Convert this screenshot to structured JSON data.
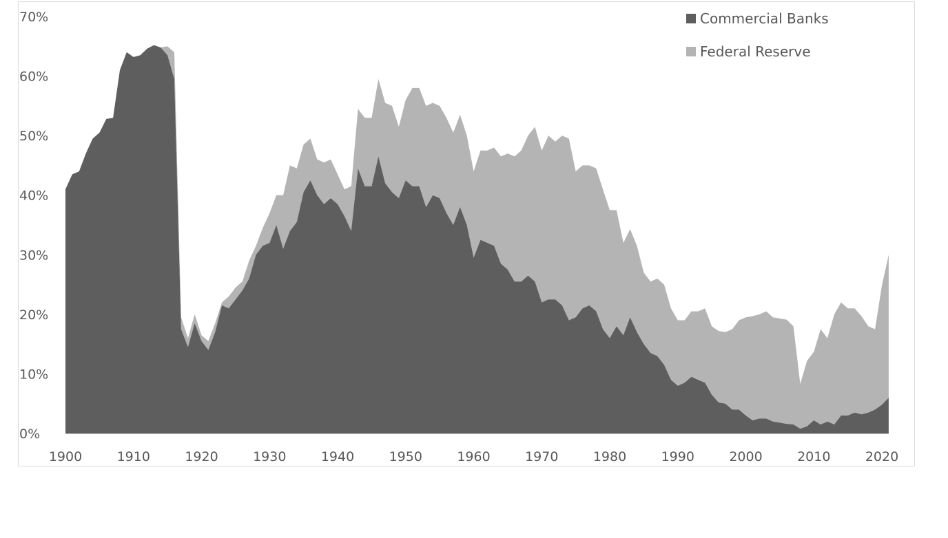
{
  "colors": {
    "commercial_banks": "#5e5e5e",
    "federal_reserve": "#b4b4b4",
    "frame": "#d9d9d9",
    "axis_line": "#bfbfbf",
    "text": "#595959"
  },
  "chart_data": {
    "type": "area",
    "stacked": true,
    "title": "",
    "xlabel": "",
    "ylabel": "",
    "xlim": [
      1900,
      2021
    ],
    "ylim": [
      0,
      70
    ],
    "x_ticks": [
      "1900",
      "1910",
      "1920",
      "1930",
      "1940",
      "1950",
      "1960",
      "1970",
      "1980",
      "1990",
      "2000",
      "2010",
      "2020"
    ],
    "y_ticks": [
      "0%",
      "10%",
      "20%",
      "30%",
      "40%",
      "50%",
      "60%",
      "70%"
    ],
    "grid": false,
    "legend_position": "top-right",
    "legend": [
      "Commercial Banks",
      "Federal Reserve"
    ],
    "x": [
      1900,
      1901,
      1902,
      1903,
      1904,
      1905,
      1906,
      1907,
      1908,
      1909,
      1910,
      1911,
      1912,
      1913,
      1914,
      1915,
      1916,
      1917,
      1918,
      1919,
      1920,
      1921,
      1922,
      1923,
      1924,
      1925,
      1926,
      1927,
      1928,
      1929,
      1930,
      1931,
      1932,
      1933,
      1934,
      1935,
      1936,
      1937,
      1938,
      1939,
      1940,
      1941,
      1942,
      1943,
      1944,
      1945,
      1946,
      1947,
      1948,
      1949,
      1950,
      1951,
      1952,
      1953,
      1954,
      1955,
      1956,
      1957,
      1958,
      1959,
      1960,
      1961,
      1962,
      1963,
      1964,
      1965,
      1966,
      1967,
      1968,
      1969,
      1970,
      1971,
      1972,
      1973,
      1974,
      1975,
      1976,
      1977,
      1978,
      1979,
      1980,
      1981,
      1982,
      1983,
      1984,
      1985,
      1986,
      1987,
      1988,
      1989,
      1990,
      1991,
      1992,
      1993,
      1994,
      1995,
      1996,
      1997,
      1998,
      1999,
      2000,
      2001,
      2002,
      2003,
      2004,
      2005,
      2006,
      2007,
      2008,
      2009,
      2010,
      2011,
      2012,
      2013,
      2014,
      2015,
      2016,
      2017,
      2018,
      2019,
      2020,
      2021
    ],
    "series": [
      {
        "name": "Commercial Banks",
        "values": [
          41,
          43.5,
          44,
          47,
          49.5,
          50.5,
          52.8,
          53,
          61,
          64,
          63.2,
          63.5,
          64.6,
          65.2,
          64.8,
          63.5,
          59.5,
          17.5,
          14.5,
          18.5,
          15.5,
          14,
          17,
          21.5,
          21,
          22.5,
          24,
          26,
          30,
          31.5,
          32,
          35,
          31,
          34,
          35.5,
          40.5,
          42.5,
          40,
          38.5,
          39.5,
          38.5,
          36.5,
          34,
          44.5,
          41.5,
          41.5,
          46.5,
          42,
          40.5,
          39.5,
          42.5,
          41.5,
          41.5,
          38,
          40,
          39.5,
          37,
          35,
          38,
          35,
          29.5,
          32.5,
          32,
          31.5,
          28.5,
          27.5,
          25.5,
          25.5,
          26.5,
          25.5,
          22,
          22.5,
          22.5,
          21.5,
          19,
          19.5,
          21,
          21.5,
          20.5,
          17.5,
          16,
          18,
          16.5,
          19.5,
          17,
          15,
          13.5,
          13,
          11.5,
          9,
          8,
          8.5,
          9.5,
          9,
          8.5,
          6.5,
          5.2,
          5,
          4,
          4,
          3,
          2.2,
          2.5,
          2.5,
          2,
          1.8,
          1.6,
          1.5,
          0.8,
          1.2,
          2.2,
          1.5,
          2,
          1.5,
          3,
          3,
          3.5,
          3.2,
          3.5,
          4,
          4.8,
          6
        ]
      },
      {
        "name": "Federal Reserve",
        "values": [
          0,
          0,
          0,
          0,
          0,
          0,
          0,
          0,
          0,
          0,
          0,
          0,
          0,
          0,
          0,
          1.5,
          4.5,
          2,
          1.5,
          1.5,
          1,
          1.5,
          1.5,
          0.5,
          2,
          2,
          1.5,
          3,
          1.5,
          3,
          5,
          5,
          9,
          11,
          9,
          8,
          7,
          6,
          7,
          6.5,
          5,
          4.5,
          7.5,
          10,
          11.5,
          11.5,
          13,
          13.5,
          14.5,
          12,
          13.5,
          16.5,
          16.5,
          17,
          15.5,
          15.5,
          16,
          15.5,
          15.5,
          15,
          14.5,
          15,
          15.5,
          16.5,
          18,
          19.5,
          21,
          22,
          23.5,
          26,
          25.5,
          27.5,
          26.5,
          28.5,
          30.5,
          24.5,
          24,
          23.5,
          24,
          23.5,
          21.5,
          19.5,
          15.5,
          14.8,
          14.5,
          12,
          12,
          13,
          13.5,
          12,
          11,
          10.5,
          11,
          11.5,
          12.5,
          11.5,
          12,
          12,
          13.5,
          15,
          16.5,
          17.5,
          17.5,
          18,
          17.5,
          17.5,
          17.5,
          16.5,
          7.5,
          11,
          11.5,
          16,
          14,
          18.5,
          19,
          18,
          17.5,
          16.5,
          14.5,
          13.5,
          20,
          24
        ]
      }
    ]
  }
}
